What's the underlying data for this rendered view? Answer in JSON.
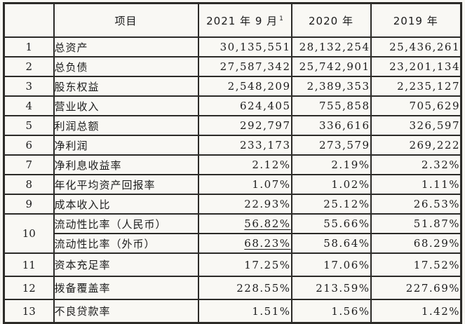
{
  "document": {
    "type": "scanned-financial-summary-table",
    "background_color": "#f7f6f2",
    "border_color": "#2c2b28",
    "text_color": "#1c1c1c"
  },
  "table": {
    "headers": {
      "num": "",
      "item": "项目",
      "y2021": "2021 年 9 月",
      "y2021_superscript": "1",
      "y2020": "2020 年",
      "y2019": "2019 年"
    },
    "rows": [
      {
        "num": "1",
        "item": "总资产",
        "v2021": "30,135,551",
        "v2020": "28,132,254",
        "v2019": "25,436,261"
      },
      {
        "num": "2",
        "item": "总负债",
        "v2021": "27,587,342",
        "v2020": "25,742,901",
        "v2019": "23,201,134"
      },
      {
        "num": "3",
        "item": "股东权益",
        "v2021": "2,548,209",
        "v2020": "2,389,353",
        "v2019": "2,235,127"
      },
      {
        "num": "4",
        "item": "营业收入",
        "v2021": "624,405",
        "v2020": "755,858",
        "v2019": "705,629"
      },
      {
        "num": "5",
        "item": "利润总额",
        "v2021": "292,797",
        "v2020": "336,616",
        "v2019": "326,597"
      },
      {
        "num": "6",
        "item": "净利润",
        "v2021": "233,173",
        "v2020": "273,579",
        "v2019": "269,222"
      },
      {
        "num": "7",
        "item": "净利息收益率",
        "v2021": "2.12%",
        "v2020": "2.19%",
        "v2019": "2.32%"
      },
      {
        "num": "8",
        "item": "年化平均资产回报率",
        "v2021": "1.07%",
        "v2020": "1.02%",
        "v2019": "1.11%"
      },
      {
        "num": "9",
        "item": "成本收入比",
        "v2021": "22.93%",
        "v2020": "25.12%",
        "v2019": "26.53%"
      },
      {
        "num": "10",
        "item": "流动性比率（人民币）",
        "v2021": "56.82%",
        "v2020": "55.66%",
        "v2019": "51.87%",
        "v2021_underlined": true
      },
      {
        "num": "10",
        "item": "流动性比率（外币）",
        "v2021": "68.23%",
        "v2020": "58.64%",
        "v2019": "68.29%",
        "v2021_underlined": true
      },
      {
        "num": "11",
        "item": "资本充足率",
        "v2021": "17.25%",
        "v2020": "17.06%",
        "v2019": "17.52%"
      },
      {
        "num": "12",
        "item": "拨备覆盖率",
        "v2021": "228.55%",
        "v2020": "213.59%",
        "v2019": "227.69%"
      },
      {
        "num": "13",
        "item": "不良贷款率",
        "v2021": "1.51%",
        "v2020": "1.56%",
        "v2019": "1.42%"
      }
    ]
  }
}
